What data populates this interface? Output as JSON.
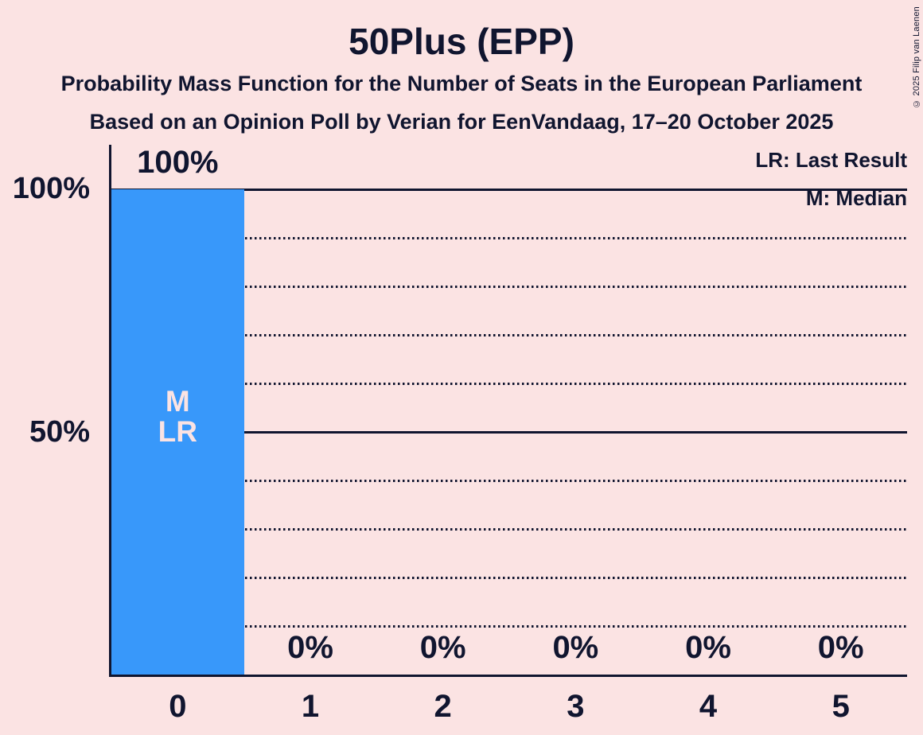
{
  "title": "50Plus (EPP)",
  "subtitle_line1": "Probability Mass Function for the Number of Seats in the European Parliament",
  "subtitle_line2": "Based on an Opinion Poll by Verian for EenVandaag, 17–20 October 2025",
  "legend": {
    "lr": "LR: Last Result",
    "m": "M: Median"
  },
  "copyright": "© 2025 Filip van Laenen",
  "colors": {
    "background": "#fbe3e3",
    "bar": "#3898fa",
    "text": "#10152f"
  },
  "chart_data": {
    "type": "bar",
    "categories": [
      "0",
      "1",
      "2",
      "3",
      "4",
      "5"
    ],
    "values": [
      100,
      0,
      0,
      0,
      0,
      0
    ],
    "value_labels": [
      "100%",
      "0%",
      "0%",
      "0%",
      "0%",
      "0%"
    ],
    "title": "50Plus (EPP)",
    "ylim": [
      0,
      100
    ],
    "yticks": [
      {
        "pos": 100,
        "label": "100%"
      },
      {
        "pos": 50,
        "label": "50%"
      }
    ],
    "gridlines_solid": [
      100,
      50
    ],
    "gridlines_dotted": [
      90,
      80,
      70,
      60,
      40,
      30,
      20,
      10
    ],
    "legend_position": "top-right",
    "bar_annotations": [
      {
        "category": "0",
        "lines": [
          "M",
          "LR"
        ]
      }
    ]
  }
}
